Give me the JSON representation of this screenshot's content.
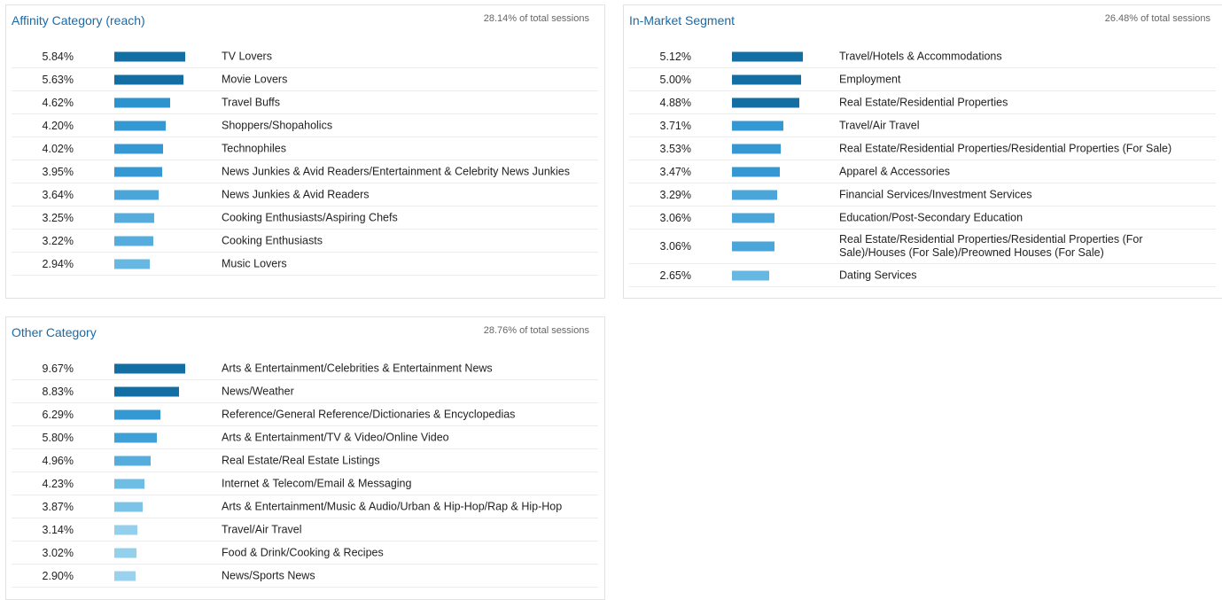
{
  "panels": {
    "affinity": {
      "title": "Affinity Category (reach)",
      "sessions": "28.14% of total sessions",
      "rows": [
        {
          "pct": "5.84%",
          "label": "TV Lovers",
          "bar": 1.0,
          "color": "#136fa3"
        },
        {
          "pct": "5.63%",
          "label": "Movie Lovers",
          "bar": 0.97,
          "color": "#136fa3"
        },
        {
          "pct": "4.62%",
          "label": "Travel Buffs",
          "bar": 0.79,
          "color": "#2c93cf"
        },
        {
          "pct": "4.20%",
          "label": "Shoppers/Shopaholics",
          "bar": 0.72,
          "color": "#3499d3"
        },
        {
          "pct": "4.02%",
          "label": "Technophiles",
          "bar": 0.69,
          "color": "#3499d3"
        },
        {
          "pct": "3.95%",
          "label": "News Junkies & Avid Readers/Entertainment & Celebrity News Junkies",
          "bar": 0.68,
          "color": "#3499d3"
        },
        {
          "pct": "3.64%",
          "label": "News Junkies & Avid Readers",
          "bar": 0.62,
          "color": "#4aa6d9"
        },
        {
          "pct": "3.25%",
          "label": "Cooking Enthusiasts/Aspiring Chefs",
          "bar": 0.56,
          "color": "#56addd"
        },
        {
          "pct": "3.22%",
          "label": "Cooking Enthusiasts",
          "bar": 0.55,
          "color": "#56addd"
        },
        {
          "pct": "2.94%",
          "label": "Music Lovers",
          "bar": 0.5,
          "color": "#66b8e2"
        }
      ]
    },
    "inmarket": {
      "title": "In-Market Segment",
      "sessions": "26.48% of total sessions",
      "rows": [
        {
          "pct": "5.12%",
          "label": "Travel/Hotels & Accommodations",
          "bar": 1.0,
          "color": "#136fa3"
        },
        {
          "pct": "5.00%",
          "label": "Employment",
          "bar": 0.98,
          "color": "#136fa3"
        },
        {
          "pct": "4.88%",
          "label": "Real Estate/Residential Properties",
          "bar": 0.95,
          "color": "#136fa3"
        },
        {
          "pct": "3.71%",
          "label": "Travel/Air Travel",
          "bar": 0.72,
          "color": "#3499d3"
        },
        {
          "pct": "3.53%",
          "label": "Real Estate/Residential Properties/Residential Properties (For Sale)",
          "bar": 0.69,
          "color": "#3499d3"
        },
        {
          "pct": "3.47%",
          "label": "Apparel & Accessories",
          "bar": 0.68,
          "color": "#3499d3"
        },
        {
          "pct": "3.29%",
          "label": "Financial Services/Investment Services",
          "bar": 0.64,
          "color": "#4aa6d9"
        },
        {
          "pct": "3.06%",
          "label": "Education/Post-Secondary Education",
          "bar": 0.6,
          "color": "#4aa6d9"
        },
        {
          "pct": "3.06%",
          "label": "Real Estate/Residential Properties/Residential Properties (For Sale)/Houses (For Sale)/Preowned Houses (For Sale)",
          "bar": 0.6,
          "color": "#4aa6d9",
          "tall": true
        },
        {
          "pct": "2.65%",
          "label": "Dating Services",
          "bar": 0.52,
          "color": "#66b8e2"
        }
      ]
    },
    "other": {
      "title": "Other Category",
      "sessions": "28.76% of total sessions",
      "rows": [
        {
          "pct": "9.67%",
          "label": "Arts & Entertainment/Celebrities & Entertainment News",
          "bar": 1.0,
          "color": "#136fa3"
        },
        {
          "pct": "8.83%",
          "label": "News/Weather",
          "bar": 0.91,
          "color": "#136fa3"
        },
        {
          "pct": "6.29%",
          "label": "Reference/General Reference/Dictionaries & Encyclopedias",
          "bar": 0.65,
          "color": "#3499d3"
        },
        {
          "pct": "5.80%",
          "label": "Arts & Entertainment/TV & Video/Online Video",
          "bar": 0.6,
          "color": "#3ea0d6"
        },
        {
          "pct": "4.96%",
          "label": "Real Estate/Real Estate Listings",
          "bar": 0.51,
          "color": "#56addd"
        },
        {
          "pct": "4.23%",
          "label": "Internet & Telecom/Email & Messaging",
          "bar": 0.43,
          "color": "#6ebde4"
        },
        {
          "pct": "3.87%",
          "label": "Arts & Entertainment/Music & Audio/Urban & Hip-Hop/Rap & Hip-Hop",
          "bar": 0.4,
          "color": "#7cc4e7"
        },
        {
          "pct": "3.14%",
          "label": "Travel/Air Travel",
          "bar": 0.33,
          "color": "#94cfec"
        },
        {
          "pct": "3.02%",
          "label": "Food & Drink/Cooking & Recipes",
          "bar": 0.31,
          "color": "#94cfec"
        },
        {
          "pct": "2.90%",
          "label": "News/Sports News",
          "bar": 0.3,
          "color": "#9ad2ee"
        }
      ]
    }
  }
}
